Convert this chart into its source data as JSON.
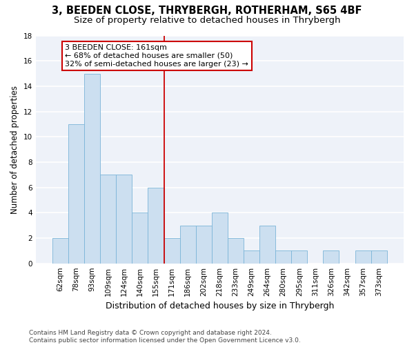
{
  "title1": "3, BEEDEN CLOSE, THRYBERGH, ROTHERHAM, S65 4BF",
  "title2": "Size of property relative to detached houses in Thrybergh",
  "xlabel": "Distribution of detached houses by size in Thrybergh",
  "ylabel": "Number of detached properties",
  "categories": [
    "62sqm",
    "78sqm",
    "93sqm",
    "109sqm",
    "124sqm",
    "140sqm",
    "155sqm",
    "171sqm",
    "186sqm",
    "202sqm",
    "218sqm",
    "233sqm",
    "249sqm",
    "264sqm",
    "280sqm",
    "295sqm",
    "311sqm",
    "326sqm",
    "342sqm",
    "357sqm",
    "373sqm"
  ],
  "values": [
    2,
    11,
    15,
    7,
    7,
    4,
    6,
    2,
    3,
    3,
    4,
    2,
    1,
    3,
    1,
    1,
    0,
    1,
    0,
    1,
    1
  ],
  "bar_color": "#ccdff0",
  "bar_edge_color": "#7ab4d8",
  "vline_color": "#cc0000",
  "annotation_text_line1": "3 BEEDEN CLOSE: 161sqm",
  "annotation_text_line2": "← 68% of detached houses are smaller (50)",
  "annotation_text_line3": "32% of semi-detached houses are larger (23) →",
  "annotation_box_color": "#cc0000",
  "ylim": [
    0,
    18
  ],
  "yticks": [
    0,
    2,
    4,
    6,
    8,
    10,
    12,
    14,
    16,
    18
  ],
  "footer_line1": "Contains HM Land Registry data © Crown copyright and database right 2024.",
  "footer_line2": "Contains public sector information licensed under the Open Government Licence v3.0.",
  "bg_color": "#eef2f9",
  "grid_color": "#ffffff",
  "title1_fontsize": 10.5,
  "title2_fontsize": 9.5,
  "xlabel_fontsize": 9,
  "ylabel_fontsize": 8.5,
  "tick_fontsize": 7.5,
  "annotation_fontsize": 8,
  "footer_fontsize": 6.5
}
